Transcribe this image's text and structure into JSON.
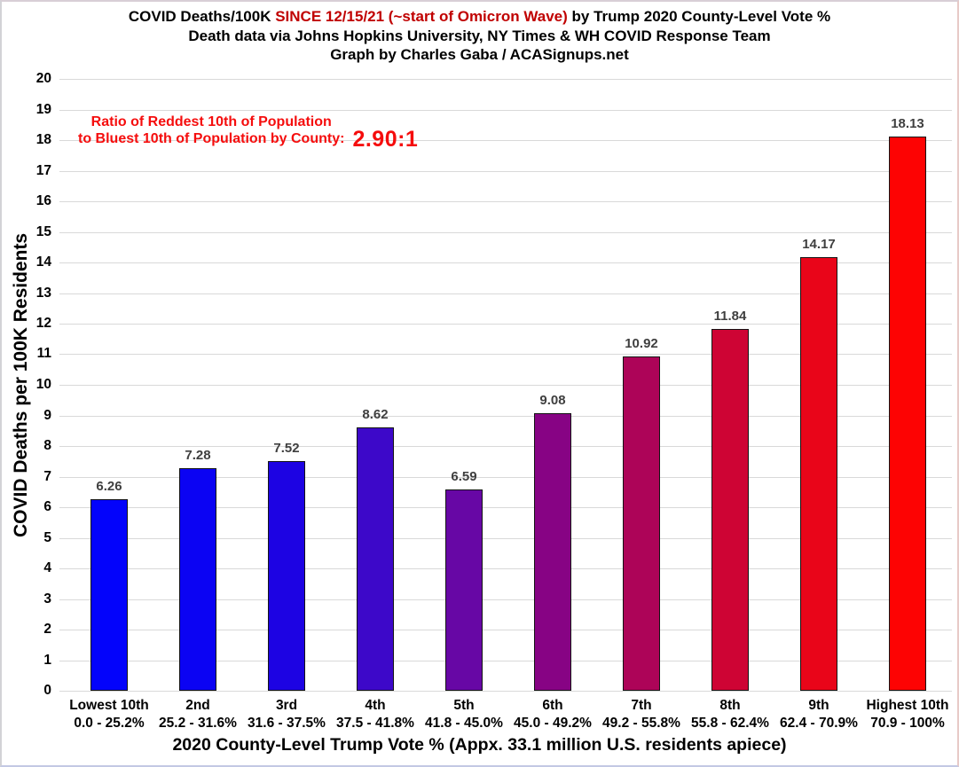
{
  "title": {
    "line1_black_prefix": "COVID Deaths/100K ",
    "line1_red": "SINCE 12/15/21 (~start of Omicron Wave)",
    "line1_black_suffix": " by Trump 2020 County-Level Vote %",
    "line2": "Death data via Johns Hopkins University, NY Times & WH COVID Response Team",
    "line3": "Graph by Charles Gaba / ACASignups.net",
    "red_color": "#C00000"
  },
  "annotation": {
    "line1": "Ratio of Reddest 10th of Population",
    "line2": "to Bluest 10th of Population by County:",
    "ratio": "2.90:1",
    "color": "#F50D0D"
  },
  "chart_data": {
    "type": "bar",
    "title": "COVID Deaths/100K SINCE 12/15/21 (~start of Omicron Wave) by Trump 2020 County-Level Vote %",
    "subtitle": "Death data via Johns Hopkins University, NY Times & WH COVID Response Team",
    "credit": "Graph by Charles Gaba / ACASignups.net",
    "xlabel": "2020 County-Level Trump Vote % (Appx. 33.1 million U.S. residents apiece)",
    "ylabel": "COVID Deaths per 100K Residents",
    "ylim": [
      0,
      20
    ],
    "ytick_step": 1,
    "grid": true,
    "legend": false,
    "categories": [
      {
        "tier": "Lowest 10th",
        "range": "0.0 - 25.2%"
      },
      {
        "tier": "2nd",
        "range": "25.2 - 31.6%"
      },
      {
        "tier": "3rd",
        "range": "31.6 - 37.5%"
      },
      {
        "tier": "4th",
        "range": "37.5 - 41.8%"
      },
      {
        "tier": "5th",
        "range": "41.8 - 45.0%"
      },
      {
        "tier": "6th",
        "range": "45.0 - 49.2%"
      },
      {
        "tier": "7th",
        "range": "49.2 - 55.8%"
      },
      {
        "tier": "8th",
        "range": "55.8 - 62.4%"
      },
      {
        "tier": "9th",
        "range": "62.4 - 70.9%"
      },
      {
        "tier": "Highest 10th",
        "range": "70.9 - 100%"
      }
    ],
    "values": [
      6.26,
      7.28,
      7.52,
      8.62,
      6.59,
      9.08,
      10.92,
      11.84,
      14.17,
      18.13
    ],
    "bar_colors": [
      "#0303FB",
      "#0B03F3",
      "#1D03E3",
      "#3D08C9",
      "#6707A5",
      "#870384",
      "#AD0458",
      "#CE0434",
      "#E90519",
      "#FD0303"
    ],
    "bar_outline_color": "#141414",
    "grid_color": "#D9D9D9",
    "value_label_color": "#3F3F3F"
  }
}
